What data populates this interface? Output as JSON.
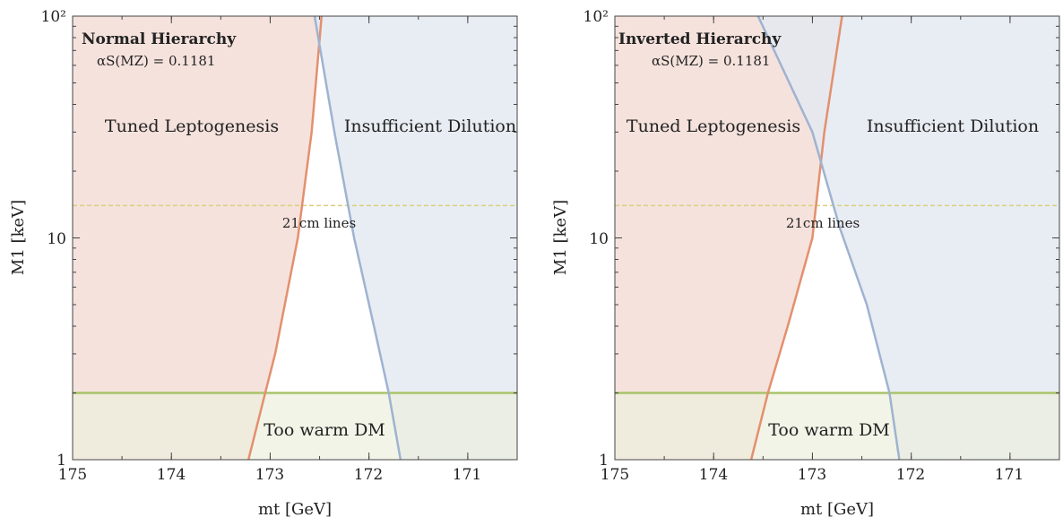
{
  "chart_data": [
    {
      "type": "region-plot",
      "title": "Normal Hierarchy",
      "subtitle": "αS(MZ) = 0.1181",
      "xlabel": "mt [GeV]",
      "ylabel": "M1 [keV]",
      "x_axis": {
        "reversed": true,
        "range": [
          175,
          170.5
        ],
        "ticks": [
          "175",
          "174",
          "173",
          "172",
          "171"
        ]
      },
      "y_axis": {
        "scale": "log",
        "range": [
          1,
          100
        ],
        "ticks": [
          "1",
          "10",
          "10²"
        ]
      },
      "regions": [
        {
          "label": "Tuned Leptogenesis",
          "color": "#f3ddd6",
          "edge_color": "#e3906e"
        },
        {
          "label": "Insufficient Dilution",
          "color": "#e4e9f1",
          "edge_color": "#9fb3d0"
        },
        {
          "label": "Too warm DM",
          "color": "#edf0dd",
          "edge_color": "#a8c46a"
        }
      ],
      "leptogenesis_boundary": [
        [
          173.22,
          1
        ],
        [
          173.05,
          2
        ],
        [
          172.95,
          3
        ],
        [
          172.72,
          10
        ],
        [
          172.58,
          30
        ],
        [
          172.48,
          100
        ]
      ],
      "dilution_boundary": [
        [
          171.68,
          1
        ],
        [
          171.8,
          2
        ],
        [
          171.95,
          4
        ],
        [
          172.15,
          10
        ],
        [
          172.35,
          30
        ],
        [
          172.55,
          100
        ]
      ],
      "warm_dm_limit_keV": 2.0,
      "line_21cm_keV": 14.0,
      "line_21cm_label": "21cm lines"
    },
    {
      "type": "region-plot",
      "title": "Inverted Hierarchy",
      "subtitle": "αS(MZ) = 0.1181",
      "xlabel": "mt [GeV]",
      "ylabel": "M1 [keV]",
      "x_axis": {
        "reversed": true,
        "range": [
          175,
          170.5
        ],
        "ticks": [
          "175",
          "174",
          "173",
          "172",
          "171"
        ]
      },
      "y_axis": {
        "scale": "log",
        "range": [
          1,
          100
        ],
        "ticks": [
          "1",
          "10",
          "10²"
        ]
      },
      "regions": [
        {
          "label": "Tuned Leptogenesis",
          "color": "#f3ddd6",
          "edge_color": "#e3906e"
        },
        {
          "label": "Insufficient Dilution",
          "color": "#e4e9f1",
          "edge_color": "#9fb3d0"
        },
        {
          "label": "Too warm DM",
          "color": "#edf0dd",
          "edge_color": "#a8c46a"
        }
      ],
      "leptogenesis_boundary": [
        [
          173.62,
          1
        ],
        [
          173.45,
          2
        ],
        [
          173.25,
          4
        ],
        [
          173.0,
          10
        ],
        [
          172.88,
          30
        ],
        [
          172.7,
          100
        ]
      ],
      "dilution_boundary": [
        [
          172.12,
          1
        ],
        [
          172.22,
          2
        ],
        [
          172.45,
          5
        ],
        [
          172.72,
          11
        ],
        [
          173.0,
          30
        ],
        [
          173.55,
          100
        ]
      ],
      "warm_dm_limit_keV": 2.0,
      "line_21cm_keV": 14.0,
      "line_21cm_label": "21cm lines"
    }
  ]
}
